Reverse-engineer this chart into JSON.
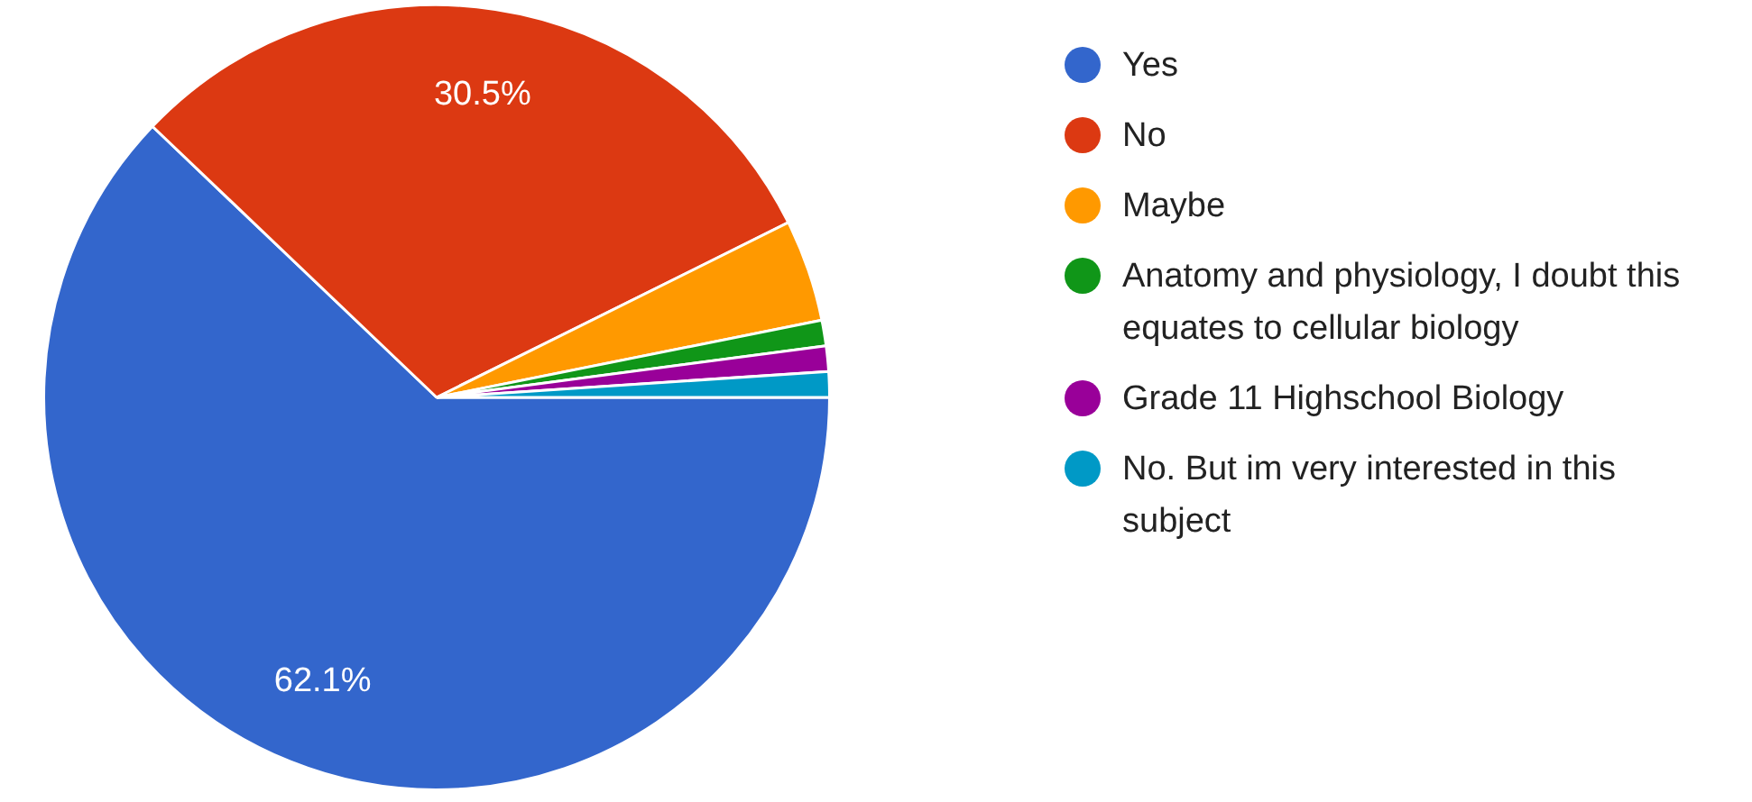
{
  "chart_data": {
    "type": "pie",
    "categories": [
      "Yes",
      "No",
      "Maybe",
      "Anatomy and physiology, I doubt this equates to cellular biology",
      "Grade 11 Highschool Biology",
      "No. But im very interested in this subject"
    ],
    "values": [
      62.1,
      30.5,
      4.2,
      1.05,
      1.05,
      1.05
    ],
    "colors": [
      "#3366cc",
      "#dc3912",
      "#ff9900",
      "#109618",
      "#990099",
      "#0099c6"
    ],
    "value_labels": [
      "62.1%",
      "30.5%",
      null,
      null,
      null,
      null
    ],
    "legend": "right"
  }
}
